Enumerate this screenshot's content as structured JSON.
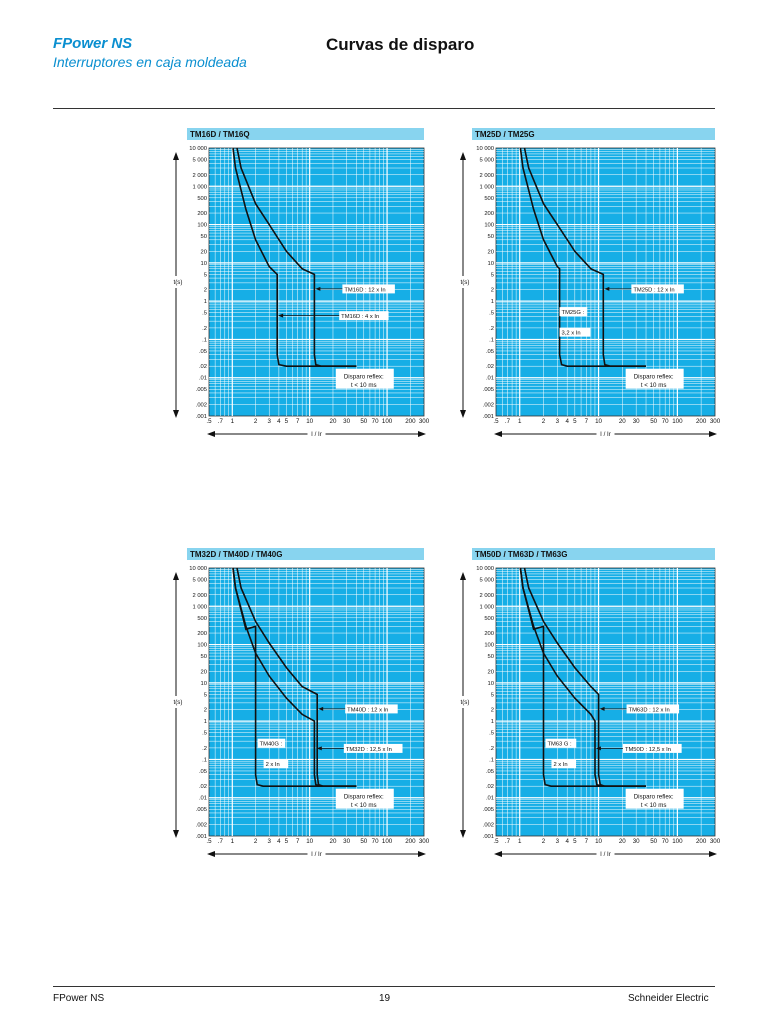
{
  "header": {
    "brand": "FPower NS",
    "subtitle": "Interruptores en caja moldeada",
    "title": "Curvas de disparo"
  },
  "footer": {
    "left": "FPower NS",
    "page": "19",
    "right": "Schneider Electric"
  },
  "colors": {
    "brand": "#0a8fd0",
    "title_band": "#88d4ef",
    "plot_bg": "#16aee6",
    "grid": "#ffffff",
    "curve": "#111111"
  },
  "chart_data": [
    {
      "type": "line",
      "title": "TM16D / TM16Q",
      "x_scale": "log",
      "y_scale": "log",
      "xlim": [
        0.5,
        300
      ],
      "ylim": [
        0.001,
        10000
      ],
      "xlabel": "I / Ir",
      "ylabel": "t(s)",
      "x_ticks": [
        0.5,
        0.7,
        1,
        2,
        3,
        4,
        5,
        7,
        10,
        20,
        30,
        50,
        70,
        100,
        200,
        300
      ],
      "x_tick_labels": [
        ".5",
        ".7",
        "1",
        "2",
        "3",
        "4",
        "5",
        "7",
        "10",
        "20",
        "30",
        "50",
        "70",
        "100",
        "200",
        "300"
      ],
      "y_ticks": [
        0.001,
        0.002,
        0.005,
        0.01,
        0.02,
        0.05,
        0.1,
        0.2,
        0.5,
        1,
        2,
        5,
        10,
        20,
        50,
        100,
        200,
        500,
        1000,
        2000,
        5000,
        10000
      ],
      "y_tick_labels": [
        ".001",
        ".002",
        ".005",
        ".01",
        ".02",
        ".05",
        ".1",
        ".2",
        ".5",
        "1",
        "2",
        "5",
        "10",
        "20",
        "50",
        "100",
        "200",
        "500",
        "1 000",
        "2 000",
        "5 000",
        "10 000"
      ],
      "grid": true,
      "series": [
        {
          "x": [
            1.02,
            1.1,
            1.5,
            2,
            3,
            3.8,
            3.8,
            4,
            5,
            6,
            10,
            20,
            40
          ],
          "y": [
            10000,
            3000,
            250,
            40,
            8,
            5,
            0.04,
            0.022,
            0.02,
            0.02,
            0.02,
            0.02,
            0.02
          ]
        },
        {
          "x": [
            1.15,
            1.3,
            2,
            3,
            5,
            8,
            11.5,
            11.5,
            12,
            14,
            20,
            40
          ],
          "y": [
            10000,
            3000,
            350,
            100,
            20,
            7,
            5,
            0.04,
            0.022,
            0.02,
            0.02,
            0.02
          ]
        }
      ],
      "annotations": [
        {
          "text": "TM16D : 12 x In",
          "x": 11.5,
          "y": 1.5
        },
        {
          "text": "TM16D : 4 x In",
          "x": 3.8,
          "y": 0.3
        },
        {
          "text": "Disparo reflex:",
          "x": 50,
          "y": 0.01
        },
        {
          "text": "t < 10 ms",
          "x": 50,
          "y": 0.006
        }
      ]
    },
    {
      "type": "line",
      "title": "TM25D / TM25G",
      "x_scale": "log",
      "y_scale": "log",
      "xlim": [
        0.5,
        300
      ],
      "ylim": [
        0.001,
        10000
      ],
      "xlabel": "I / Ir",
      "ylabel": "t(s)",
      "x_ticks": [
        0.5,
        0.7,
        1,
        2,
        3,
        4,
        5,
        7,
        10,
        20,
        30,
        50,
        70,
        100,
        200,
        300
      ],
      "x_tick_labels": [
        ".5",
        ".7",
        "1",
        "2",
        "3",
        "4",
        "5",
        "7",
        "10",
        "20",
        "30",
        "50",
        "70",
        "100",
        "200",
        "300"
      ],
      "y_ticks": [
        0.001,
        0.002,
        0.005,
        0.01,
        0.02,
        0.05,
        0.1,
        0.2,
        0.5,
        1,
        2,
        5,
        10,
        20,
        50,
        100,
        200,
        500,
        1000,
        2000,
        5000,
        10000
      ],
      "y_tick_labels": [
        ".001",
        ".002",
        ".005",
        ".01",
        ".02",
        ".05",
        ".1",
        ".2",
        ".5",
        "1",
        "2",
        "5",
        "10",
        "20",
        "50",
        "100",
        "200",
        "500",
        "1 000",
        "2 000",
        "5 000",
        "10 000"
      ],
      "grid": true,
      "series": [
        {
          "x": [
            1.02,
            1.1,
            1.5,
            2,
            3,
            3.2,
            3.2,
            3.4,
            4,
            6,
            10,
            20,
            40
          ],
          "y": [
            10000,
            3000,
            250,
            40,
            8,
            7,
            0.04,
            0.022,
            0.02,
            0.02,
            0.02,
            0.02,
            0.02
          ]
        },
        {
          "x": [
            1.15,
            1.3,
            2,
            3,
            5,
            8,
            11.5,
            11.5,
            12,
            14,
            20,
            40
          ],
          "y": [
            10000,
            3000,
            350,
            100,
            20,
            7,
            5,
            0.04,
            0.022,
            0.02,
            0.02,
            0.02
          ]
        }
      ],
      "annotations": [
        {
          "text": "TM25D : 12 x In",
          "x": 11.5,
          "y": 1.5
        },
        {
          "text": "TM25G :",
          "x": 3.2,
          "y": 0.3
        },
        {
          "text": "3,2 x In",
          "x": 3.2,
          "y": 0.18
        },
        {
          "text": "Disparo reflex:",
          "x": 50,
          "y": 0.01
        },
        {
          "text": "t < 10 ms",
          "x": 50,
          "y": 0.006
        }
      ]
    },
    {
      "type": "line",
      "title": "TM32D / TM40D / TM40G",
      "x_scale": "log",
      "y_scale": "log",
      "xlim": [
        0.5,
        300
      ],
      "ylim": [
        0.001,
        10000
      ],
      "xlabel": "I / Ir",
      "ylabel": "t(s)",
      "x_ticks": [
        0.5,
        0.7,
        1,
        2,
        3,
        4,
        5,
        7,
        10,
        20,
        30,
        50,
        70,
        100,
        200,
        300
      ],
      "x_tick_labels": [
        ".5",
        ".7",
        "1",
        "2",
        "3",
        "4",
        "5",
        "7",
        "10",
        "20",
        "30",
        "50",
        "70",
        "100",
        "200",
        "300"
      ],
      "y_ticks": [
        0.001,
        0.002,
        0.005,
        0.01,
        0.02,
        0.05,
        0.1,
        0.2,
        0.5,
        1,
        2,
        5,
        10,
        20,
        50,
        100,
        200,
        500,
        1000,
        2000,
        5000,
        10000
      ],
      "y_tick_labels": [
        ".001",
        ".002",
        ".005",
        ".01",
        ".02",
        ".05",
        ".1",
        ".2",
        ".5",
        "1",
        "2",
        "5",
        "10",
        "20",
        "50",
        "100",
        "200",
        "500",
        "1 000",
        "2 000",
        "5 000",
        "10 000"
      ],
      "grid": true,
      "series": [
        {
          "x": [
            1.02,
            1.1,
            1.5,
            2,
            2,
            2.1,
            2.5,
            4,
            10,
            20,
            40
          ],
          "y": [
            10000,
            3000,
            250,
            300,
            0.04,
            0.022,
            0.02,
            0.02,
            0.02,
            0.02,
            0.02
          ]
        },
        {
          "x": [
            1.02,
            1.1,
            1.5,
            2,
            3,
            5,
            8,
            11.5,
            11.5,
            12,
            14,
            20,
            40
          ],
          "y": [
            10000,
            3000,
            300,
            60,
            15,
            4,
            1.5,
            1,
            0.04,
            0.022,
            0.02,
            0.02,
            0.02
          ]
        },
        {
          "x": [
            1.15,
            1.3,
            2,
            3,
            5,
            8,
            12.5,
            12.5,
            13,
            15,
            20,
            40
          ],
          "y": [
            10000,
            3000,
            400,
            110,
            25,
            8,
            5,
            0.04,
            0.022,
            0.02,
            0.02,
            0.02
          ]
        }
      ],
      "annotations": [
        {
          "text": "TM40D : 12 x In",
          "x": 12.5,
          "y": 1.5
        },
        {
          "text": "TM32D : 12,5 x In",
          "x": 12,
          "y": 0.2
        },
        {
          "text": "TM40G :",
          "x": 2,
          "y": 0.15
        },
        {
          "text": "2 x In",
          "x": 2,
          "y": 0.09
        },
        {
          "text": "Disparo reflex:",
          "x": 50,
          "y": 0.01
        },
        {
          "text": "t < 10 ms",
          "x": 50,
          "y": 0.006
        }
      ]
    },
    {
      "type": "line",
      "title": "TM50D / TM63D / TM63G",
      "x_scale": "log",
      "y_scale": "log",
      "xlim": [
        0.5,
        300
      ],
      "ylim": [
        0.001,
        10000
      ],
      "xlabel": "I / Ir",
      "ylabel": "t(s)",
      "x_ticks": [
        0.5,
        0.7,
        1,
        2,
        3,
        4,
        5,
        7,
        10,
        20,
        30,
        50,
        70,
        100,
        200,
        300
      ],
      "x_tick_labels": [
        ".5",
        ".7",
        "1",
        "2",
        "3",
        "4",
        "5",
        "7",
        "10",
        "20",
        "30",
        "50",
        "70",
        "100",
        "200",
        "300"
      ],
      "y_ticks": [
        0.001,
        0.002,
        0.005,
        0.01,
        0.02,
        0.05,
        0.1,
        0.2,
        0.5,
        1,
        2,
        5,
        10,
        20,
        50,
        100,
        200,
        500,
        1000,
        2000,
        5000,
        10000
      ],
      "y_tick_labels": [
        ".001",
        ".002",
        ".005",
        ".01",
        ".02",
        ".05",
        ".1",
        ".2",
        ".5",
        "1",
        "2",
        "5",
        "10",
        "20",
        "50",
        "100",
        "200",
        "500",
        "1 000",
        "2 000",
        "5 000",
        "10 000"
      ],
      "grid": true,
      "series": [
        {
          "x": [
            1.02,
            1.1,
            1.5,
            2,
            2,
            2.1,
            2.5,
            4,
            10,
            20,
            40
          ],
          "y": [
            10000,
            3000,
            250,
            300,
            0.04,
            0.022,
            0.02,
            0.02,
            0.02,
            0.02,
            0.02
          ]
        },
        {
          "x": [
            1.02,
            1.1,
            1.5,
            2,
            3,
            5,
            8,
            9,
            9,
            9.5,
            11,
            20,
            40
          ],
          "y": [
            10000,
            3000,
            300,
            60,
            15,
            4,
            1.5,
            1,
            0.04,
            0.022,
            0.02,
            0.02,
            0.02
          ]
        },
        {
          "x": [
            1.15,
            1.3,
            2,
            3,
            5,
            8,
            10,
            10,
            10.5,
            12,
            20,
            40
          ],
          "y": [
            10000,
            3000,
            400,
            110,
            25,
            8,
            5,
            0.04,
            0.022,
            0.02,
            0.02,
            0.02
          ]
        }
      ],
      "annotations": [
        {
          "text": "TM63D : 12 x In",
          "x": 10,
          "y": 1.5
        },
        {
          "text": "TM50D : 12,5 x In",
          "x": 9,
          "y": 0.2
        },
        {
          "text": "TM63 G :",
          "x": 2,
          "y": 0.15
        },
        {
          "text": "2 x In",
          "x": 2,
          "y": 0.09
        },
        {
          "text": "Disparo reflex:",
          "x": 50,
          "y": 0.01
        },
        {
          "text": "t < 10 ms",
          "x": 50,
          "y": 0.006
        }
      ]
    }
  ]
}
